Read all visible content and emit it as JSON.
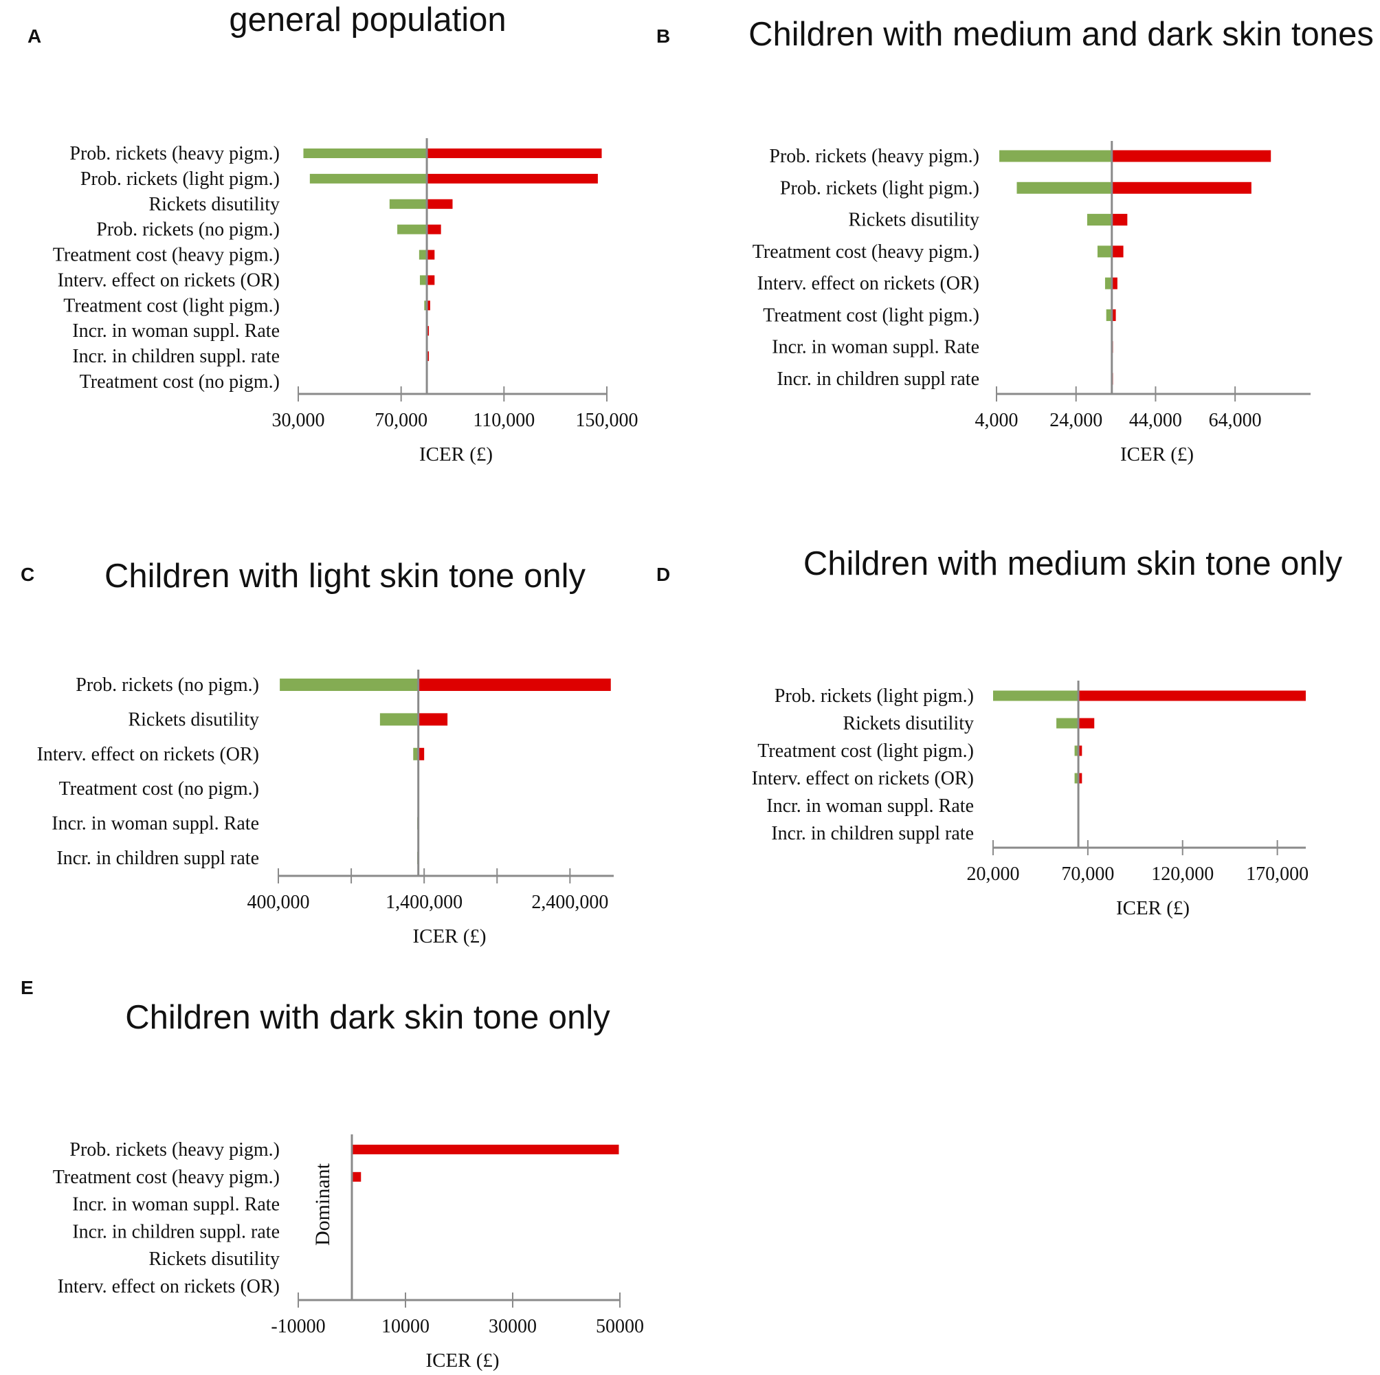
{
  "colors": {
    "low": "#84AC53",
    "high": "#DD0000",
    "axis": "#8A8A8A"
  },
  "chart_data": [
    {
      "type": "bar",
      "panel": "A",
      "title": "general population",
      "xlabel": "ICER (£)",
      "baseline": 80000,
      "xlim": [
        30000,
        150000
      ],
      "ticks": [
        30000,
        70000,
        110000,
        150000
      ],
      "tick_labels": [
        "30,000",
        "70,000",
        "110,000",
        "150,000"
      ],
      "rows": [
        {
          "label": "Prob. rickets (heavy pigm.)",
          "low": 32000,
          "high": 148000
        },
        {
          "label": "Prob. rickets (light pigm.)",
          "low": 34500,
          "high": 146500
        },
        {
          "label": "Rickets disutility",
          "low": 65500,
          "high": 90000
        },
        {
          "label": "Prob. rickets (no pigm.)",
          "low": 68500,
          "high": 85500
        },
        {
          "label": "Treatment cost (heavy pigm.)",
          "low": 77000,
          "high": 83000
        },
        {
          "label": "Interv. effect on rickets (OR)",
          "low": 77300,
          "high": 83000
        },
        {
          "label": "Treatment cost (light pigm.)",
          "low": 79000,
          "high": 81300
        },
        {
          "label": "Incr. in woman suppl. Rate",
          "low": 80000,
          "high": 80800
        },
        {
          "label": "Incr. in children suppl. rate",
          "low": 80000,
          "high": 80800
        },
        {
          "label": "Treatment cost (no pigm.)",
          "low": 80000,
          "high": 80000
        }
      ]
    },
    {
      "type": "bar",
      "panel": "B",
      "title": "Children with medium and dark skin tones",
      "xlabel": "ICER (£)",
      "baseline": 33000,
      "xlim": [
        4000,
        74000
      ],
      "ticks": [
        4000,
        24000,
        44000,
        64000
      ],
      "tick_labels": [
        "4,000",
        "24,000",
        "44,000",
        "64,000"
      ],
      "rows": [
        {
          "label": "Prob. rickets (heavy pigm.)",
          "low": 4700,
          "high": 73000
        },
        {
          "label": "Prob. rickets (light pigm.)",
          "low": 9100,
          "high": 68100
        },
        {
          "label": "Rickets disutility",
          "low": 26800,
          "high": 36900
        },
        {
          "label": "Treatment cost (heavy pigm.)",
          "low": 29400,
          "high": 35900
        },
        {
          "label": "Interv. effect on rickets (OR)",
          "low": 31300,
          "high": 34400
        },
        {
          "label": "Treatment cost (light pigm.)",
          "low": 31600,
          "high": 34000
        },
        {
          "label": "Incr. in woman suppl. Rate",
          "low": 32800,
          "high": 33300
        },
        {
          "label": "Incr. in children suppl rate",
          "low": 32800,
          "high": 33300
        }
      ]
    },
    {
      "type": "bar",
      "panel": "C",
      "title": "Children with light skin tone only",
      "xlabel": "ICER (£)",
      "baseline": 1360000,
      "xlim": [
        400000,
        2700000
      ],
      "ticks": [
        400000,
        900000,
        1400000,
        1900000,
        2400000
      ],
      "tick_labels": [
        "400,000",
        "",
        "1,400,000",
        "",
        "2,400,000"
      ],
      "rows": [
        {
          "label": "Prob. rickets (no pigm.)",
          "low": 410000,
          "high": 2680000
        },
        {
          "label": "Rickets disutility",
          "low": 1097000,
          "high": 1560000
        },
        {
          "label": "Interv. effect on rickets (OR)",
          "low": 1325000,
          "high": 1400000
        },
        {
          "label": "Treatment cost (no pigm.)",
          "low": 1360000,
          "high": 1360000
        },
        {
          "label": "Incr. in woman suppl. Rate",
          "low": 1352000,
          "high": 1360000
        },
        {
          "label": "Incr. in children suppl rate",
          "low": 1352000,
          "high": 1360000
        }
      ]
    },
    {
      "type": "bar",
      "panel": "D",
      "title": "Children with medium skin tone only",
      "xlabel": "ICER (£)",
      "baseline": 65000,
      "xlim": [
        20000,
        185000
      ],
      "ticks": [
        20000,
        70000,
        120000,
        170000
      ],
      "tick_labels": [
        "20,000",
        "70,000",
        "120,000",
        "170,000"
      ],
      "rows": [
        {
          "label": "Prob. rickets (light pigm.)",
          "low": 20000,
          "high": 185000
        },
        {
          "label": "Rickets disutility",
          "low": 53400,
          "high": 73400
        },
        {
          "label": "Treatment cost (light pigm.)",
          "low": 63000,
          "high": 66900
        },
        {
          "label": "Interv. effect on rickets (OR)",
          "low": 63000,
          "high": 66900
        },
        {
          "label": "Incr. in woman suppl. Rate",
          "low": 65000,
          "high": 65000
        },
        {
          "label": "Incr. in children suppl rate",
          "low": 65000,
          "high": 65000
        }
      ]
    },
    {
      "type": "bar",
      "panel": "E",
      "title": "Children with dark skin tone only",
      "xlabel": "ICER (£)",
      "baseline": 0,
      "baseline_label": "Dominant",
      "xlim": [
        -10000,
        50000
      ],
      "ticks": [
        -10000,
        10000,
        30000,
        50000
      ],
      "tick_labels": [
        "-10000",
        "10000",
        "30000",
        "50000"
      ],
      "rows": [
        {
          "label": "Prob. rickets (heavy pigm.)",
          "low": 0,
          "high": 49800
        },
        {
          "label": "Treatment cost (heavy pigm.)",
          "low": 0,
          "high": 1700
        },
        {
          "label": "Incr. in woman suppl. Rate",
          "low": 0,
          "high": 0
        },
        {
          "label": "Incr. in children suppl. rate",
          "low": 0,
          "high": 0
        },
        {
          "label": "Rickets disutility",
          "low": 0,
          "high": 0
        },
        {
          "label": "Interv. effect on rickets (OR)",
          "low": 0,
          "high": 0
        }
      ]
    }
  ]
}
